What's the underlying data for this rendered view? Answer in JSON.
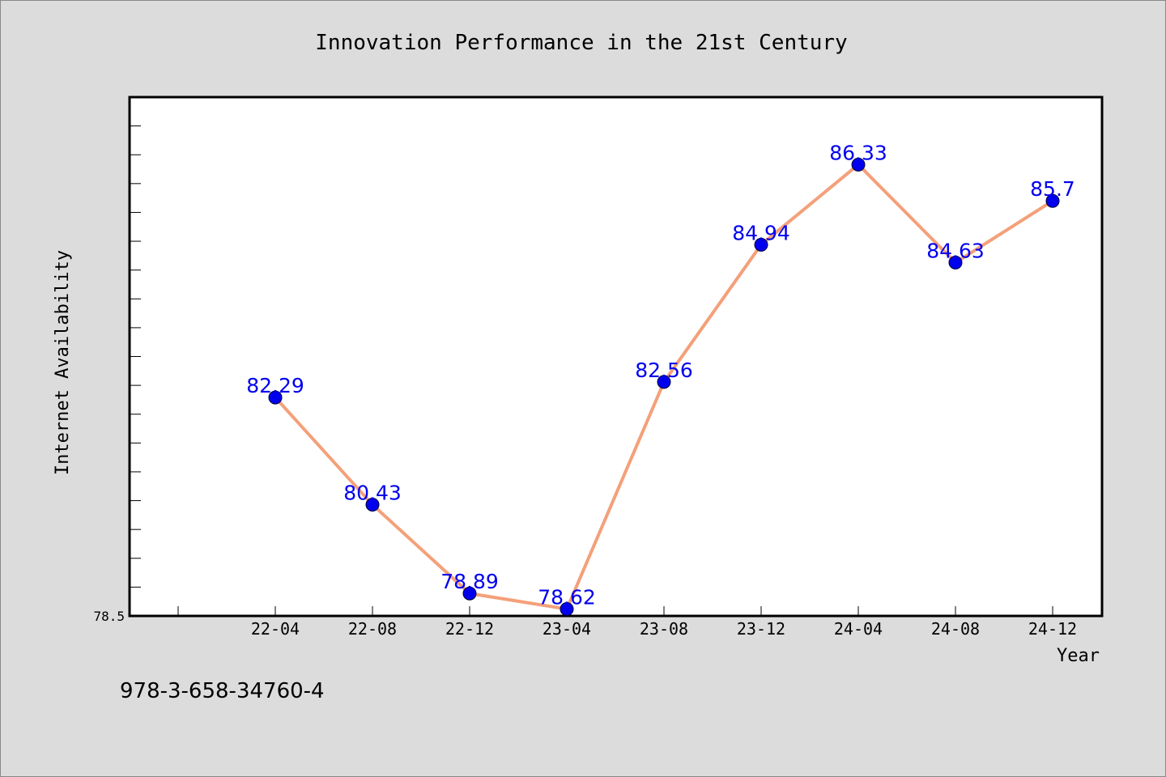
{
  "colors": {
    "background": "#dcdcdc",
    "plot_background": "#ffffff",
    "line": "#f4a07a",
    "marker": "#0000ee",
    "data_label": "#0000ee"
  },
  "footer_text": "978-3-658-34760-4",
  "chart_data": {
    "type": "line",
    "title": "Innovation Performance in the 21st Century",
    "xlabel": "Year",
    "ylabel": "Internet Availability",
    "categories": [
      "22-04",
      "22-08",
      "22-12",
      "23-04",
      "23-08",
      "23-12",
      "24-04",
      "24-08",
      "24-12"
    ],
    "series": [
      {
        "values": [
          82.29,
          80.43,
          78.89,
          78.62,
          82.56,
          84.94,
          86.33,
          84.63,
          85.7
        ],
        "labels": [
          "82.29",
          "80.43",
          "78.89",
          "78.62",
          "82.56",
          "84.94",
          "86.33",
          "84.63",
          "85.7"
        ]
      }
    ],
    "y_tick_labels": [
      "78.5"
    ],
    "ylim": [
      78.5,
      87.5
    ],
    "grid": false,
    "legend": "none"
  }
}
